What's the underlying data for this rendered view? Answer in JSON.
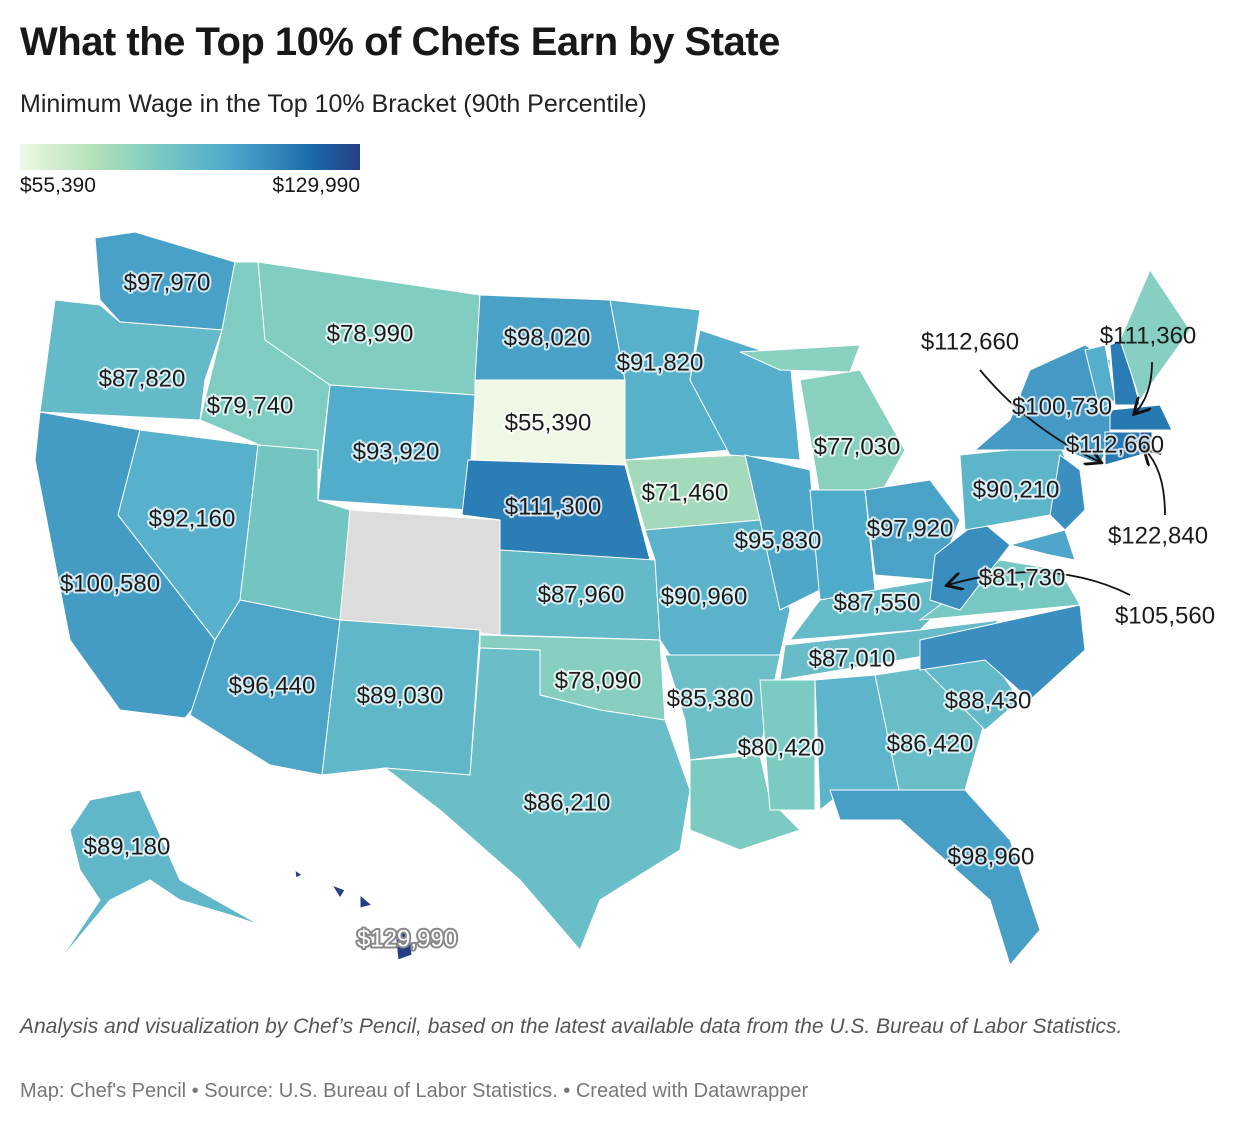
{
  "header": {
    "title": "What the Top 10% of Chefs Earn by State",
    "subtitle": "Minimum Wage in the Top 10% Bracket (90th Percentile)"
  },
  "legend": {
    "min_label": "$55,390",
    "max_label": "$129,990",
    "min": 55390,
    "max": 129990,
    "colors": [
      "#eef8e5",
      "#b3e0b8",
      "#7ccbc2",
      "#55afcc",
      "#3a8fc0",
      "#1a6aa9",
      "#243f85"
    ],
    "no_data_color": "#dcdcdc"
  },
  "states": {
    "WA": {
      "value": 97970,
      "label": "$97,970"
    },
    "OR": {
      "value": 87820,
      "label": "$87,820"
    },
    "CA": {
      "value": 100580,
      "label": "$100,580"
    },
    "NV": {
      "value": 92160,
      "label": "$92,160"
    },
    "ID": {
      "value": 79740,
      "label": "$79,740"
    },
    "MT": {
      "value": 78990,
      "label": "$78,990"
    },
    "WY": {
      "value": 93920,
      "label": "$93,920"
    },
    "UT": {
      "color": "#72c5c0"
    },
    "CO": {
      "color": "#dcdcdc"
    },
    "AZ": {
      "value": 96440,
      "label": "$96,440"
    },
    "NM": {
      "value": 89030,
      "label": "$89,030"
    },
    "ND": {
      "value": 98020,
      "label": "$98,020"
    },
    "SD": {
      "value": 55390,
      "label": "$55,390"
    },
    "NE": {
      "value": 111300,
      "label": "$111,300"
    },
    "KS": {
      "value": 87960,
      "label": "$87,960"
    },
    "OK": {
      "value": 78090,
      "label": "$78,090"
    },
    "TX": {
      "value": 86210,
      "label": "$86,210"
    },
    "MN": {
      "value": 91820,
      "label": "$91,820"
    },
    "IA": {
      "value": 71460,
      "label": "$71,460"
    },
    "MO": {
      "value": 90960,
      "label": "$90,960"
    },
    "AR": {
      "value": 85380,
      "label": "$85,380"
    },
    "LA": {
      "color": "#7ccbc2"
    },
    "WI": {
      "color": "#55afcc"
    },
    "IL": {
      "value": 95830,
      "label": "$95,830"
    },
    "MI": {
      "value": 77030,
      "label": "$77,030"
    },
    "IN": {
      "color": "#4fabcc"
    },
    "OH": {
      "value": 97920,
      "label": "$97,920"
    },
    "KY": {
      "value": 87550,
      "label": "$87,550"
    },
    "TN": {
      "value": 87010,
      "label": "$87,010"
    },
    "MS": {
      "value": 80420,
      "label": "$80,420"
    },
    "AL": {
      "color": "#5cb5cb"
    },
    "GA": {
      "value": 86420,
      "label": "$86,420"
    },
    "FL": {
      "value": 98960,
      "label": "$98,960"
    },
    "SC": {
      "value": 88430,
      "label": "$88,430"
    },
    "NC": {
      "color": "#3a8fc0"
    },
    "VA": {
      "value": 81730,
      "label": "$81,730"
    },
    "WV": {
      "value": 105560,
      "label": "$105,560"
    },
    "PA": {
      "value": 90210,
      "label": "$90,210"
    },
    "NY": {
      "value": 100730,
      "label": "$100,730"
    },
    "NJ": {
      "color": "#3a8fc0"
    },
    "MD": {
      "color": "#4fa5ca"
    },
    "VT": {
      "color": "#55afcc"
    },
    "NH": {
      "value": 111360,
      "label": "$111,360"
    },
    "ME": {
      "color": "#86cfc2"
    },
    "MA": {
      "value": 112660,
      "label": "$112,660"
    },
    "CT": {
      "value": 112660,
      "label": "$112,660"
    },
    "RI": {
      "value": 122840,
      "label": "$122,840"
    },
    "AK": {
      "value": 89180,
      "label": "$89,180"
    },
    "HI": {
      "value": 129990,
      "label": "$129,990"
    }
  },
  "footer": {
    "note": "Analysis and visualization by Chef’s Pencil, based on the latest available data from the U.S. Bureau of Labor Statistics.",
    "credits": "Map: Chef's Pencil • Source: U.S. Bureau of Labor Statistics. • Created with Datawrapper"
  }
}
